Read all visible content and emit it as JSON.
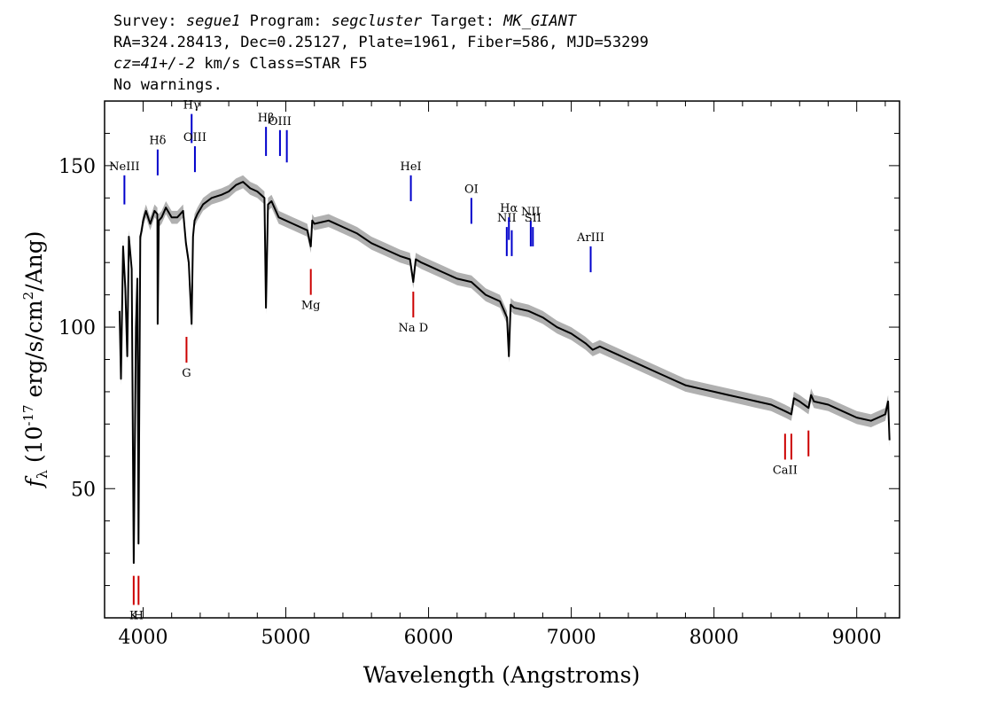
{
  "header": {
    "survey_label": "Survey:",
    "survey": "segue1",
    "program_label": "Program:",
    "program": "segcluster",
    "target_label": "Target:",
    "target": "MK_GIANT",
    "line2": "RA=324.28413, Dec=0.25127, Plate=1961, Fiber=586, MJD=53299",
    "redshift": "cz=41+/-2",
    "redshift_unit": "km/s Class=STAR F5",
    "warnings": "No warnings."
  },
  "chart_data": {
    "type": "line",
    "xlabel": "Wavelength (Angstroms)",
    "ylabel": "f_λ (10^-17 erg/s/cm^2/Ang)",
    "xlim": [
      3730,
      9300
    ],
    "ylim": [
      10,
      170
    ],
    "xticks": [
      4000,
      5000,
      6000,
      7000,
      8000,
      9000
    ],
    "yticks": [
      50,
      100,
      150
    ],
    "grid": false,
    "colors": {
      "spectrum": "#000000",
      "error_band": "#b0b0b0",
      "emission": "#0000cc",
      "absorption": "#cc0000"
    },
    "spectrum": {
      "x": [
        3835,
        3845,
        3860,
        3875,
        3889,
        3900,
        3920,
        3934,
        3950,
        3960,
        3968,
        3980,
        3990,
        4000,
        4020,
        4050,
        4080,
        4100,
        4102,
        4110,
        4130,
        4160,
        4200,
        4240,
        4280,
        4300,
        4320,
        4340,
        4350,
        4360,
        4380,
        4420,
        4480,
        4550,
        4600,
        4650,
        4700,
        4750,
        4800,
        4850,
        4861,
        4875,
        4900,
        4950,
        5000,
        5050,
        5100,
        5150,
        5175,
        5185,
        5200,
        5300,
        5400,
        5500,
        5600,
        5700,
        5800,
        5870,
        5893,
        5910,
        5950,
        6000,
        6100,
        6200,
        6300,
        6400,
        6500,
        6550,
        6563,
        6575,
        6600,
        6700,
        6800,
        6900,
        7000,
        7100,
        7150,
        7200,
        7300,
        7400,
        7500,
        7600,
        7700,
        7800,
        7900,
        8000,
        8100,
        8200,
        8300,
        8400,
        8498,
        8542,
        8560,
        8600,
        8662,
        8680,
        8700,
        8800,
        8900,
        9000,
        9100,
        9150,
        9200,
        9220,
        9230
      ],
      "y": [
        105,
        84,
        125,
        112,
        91,
        128,
        118,
        27,
        100,
        115,
        33,
        128,
        130,
        133,
        136,
        132,
        136,
        135,
        101,
        133,
        134,
        137,
        134,
        134,
        136,
        126,
        120,
        101,
        128,
        133,
        135,
        138,
        140,
        141,
        142,
        144,
        145,
        143,
        142,
        140,
        106,
        138,
        139,
        134,
        133,
        132,
        131,
        130,
        125,
        133,
        132,
        133,
        131,
        129,
        126,
        124,
        122,
        121,
        114,
        121,
        120,
        119,
        117,
        115,
        114,
        110,
        108,
        103,
        91,
        107,
        106,
        105,
        103,
        100,
        98,
        95,
        93,
        94,
        92,
        90,
        88,
        86,
        84,
        82,
        81,
        80,
        79,
        78,
        77,
        76,
        74,
        73,
        78,
        77,
        75,
        79,
        77,
        76,
        74,
        72,
        71,
        72,
        73,
        77,
        65
      ]
    },
    "lines": [
      {
        "label": "NeIII",
        "wavelength": 3869,
        "kind": "emission",
        "y_low": 147,
        "y_high": 138
      },
      {
        "label": "Hδ",
        "wavelength": 4102,
        "kind": "emission",
        "y_low": 155,
        "y_high": 147
      },
      {
        "label": "Hγ",
        "wavelength": 4340,
        "kind": "emission",
        "y_low": 166,
        "y_high": 157
      },
      {
        "label": "OIII",
        "wavelength": 4363,
        "kind": "emission",
        "y_low": 156,
        "y_high": 148
      },
      {
        "label": "Hβ",
        "wavelength": 4861,
        "kind": "emission",
        "y_low": 162,
        "y_high": 153
      },
      {
        "label": "OIII",
        "wavelength": 4959,
        "kind": "emission",
        "y_low": 161,
        "y_high": 153
      },
      {
        "label": "",
        "wavelength": 5007,
        "kind": "emission",
        "y_low": 161,
        "y_high": 151
      },
      {
        "label": "HeI",
        "wavelength": 5876,
        "kind": "emission",
        "y_low": 147,
        "y_high": 139
      },
      {
        "label": "OI",
        "wavelength": 6300,
        "kind": "emission",
        "y_low": 140,
        "y_high": 132
      },
      {
        "label": "NII",
        "wavelength": 6548,
        "kind": "emission",
        "y_low": 131,
        "y_high": 122
      },
      {
        "label": "Hα",
        "wavelength": 6563,
        "kind": "emission",
        "y_low": 134,
        "y_high": 127
      },
      {
        "label": "",
        "wavelength": 6583,
        "kind": "emission",
        "y_low": 130,
        "y_high": 122
      },
      {
        "label": "NII",
        "wavelength": 6716,
        "kind": "emission",
        "y_low": 133,
        "y_high": 125
      },
      {
        "label": "SII",
        "wavelength": 6731,
        "kind": "emission",
        "y_low": 131,
        "y_high": 125
      },
      {
        "label": "ArIII",
        "wavelength": 7136,
        "kind": "emission",
        "y_low": 125,
        "y_high": 117
      },
      {
        "label": "K",
        "wavelength": 3934,
        "kind": "absorption",
        "y_low": 14,
        "y_high": 23
      },
      {
        "label": "H",
        "wavelength": 3968,
        "kind": "absorption",
        "y_low": 14,
        "y_high": 23
      },
      {
        "label": "G",
        "wavelength": 4304,
        "kind": "absorption",
        "y_low": 89,
        "y_high": 97
      },
      {
        "label": "Mg",
        "wavelength": 5175,
        "kind": "absorption",
        "y_low": 110,
        "y_high": 118
      },
      {
        "label": "Na D",
        "wavelength": 5893,
        "kind": "absorption",
        "y_low": 103,
        "y_high": 111
      },
      {
        "label": "CaII",
        "wavelength": 8498,
        "kind": "absorption",
        "y_low": 59,
        "y_high": 67
      },
      {
        "label": "",
        "wavelength": 8542,
        "kind": "absorption",
        "y_low": 59,
        "y_high": 67
      },
      {
        "label": "",
        "wavelength": 8662,
        "kind": "absorption",
        "y_low": 60,
        "y_high": 68
      }
    ]
  }
}
